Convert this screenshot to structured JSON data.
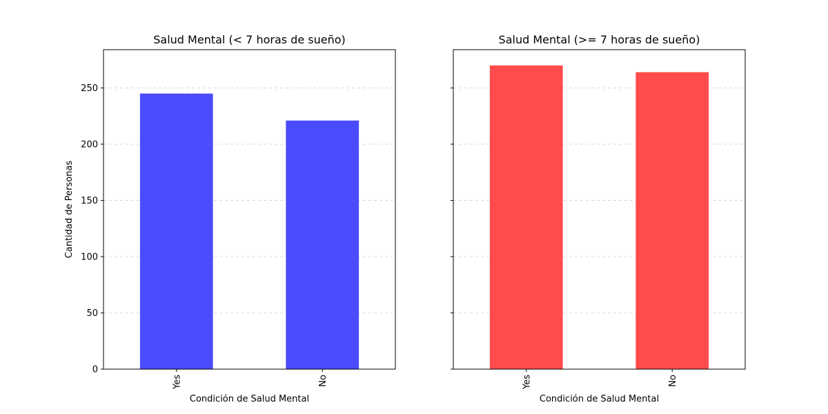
{
  "chart_data": [
    {
      "type": "bar",
      "title": "Salud Mental (< 7 horas de sueño)",
      "xlabel": "Condición de Salud Mental",
      "ylabel": "Cantidad de Personas",
      "categories": [
        "Yes",
        "No"
      ],
      "values": [
        245,
        221
      ],
      "ylim": [
        0,
        284
      ],
      "yticks": [
        0,
        50,
        100,
        150,
        200,
        250
      ],
      "ytick_labels_visible": true,
      "color": "#4b4bff",
      "grid": "y-dashed",
      "legend": "none"
    },
    {
      "type": "bar",
      "title": "Salud Mental (>= 7 horas de sueño)",
      "xlabel": "Condición de Salud Mental",
      "ylabel": "",
      "categories": [
        "Yes",
        "No"
      ],
      "values": [
        270,
        264
      ],
      "ylim": [
        0,
        284
      ],
      "yticks": [
        0,
        50,
        100,
        150,
        200,
        250
      ],
      "ytick_labels_visible": false,
      "color": "#ff4b4b",
      "grid": "y-dashed",
      "legend": "none"
    }
  ]
}
